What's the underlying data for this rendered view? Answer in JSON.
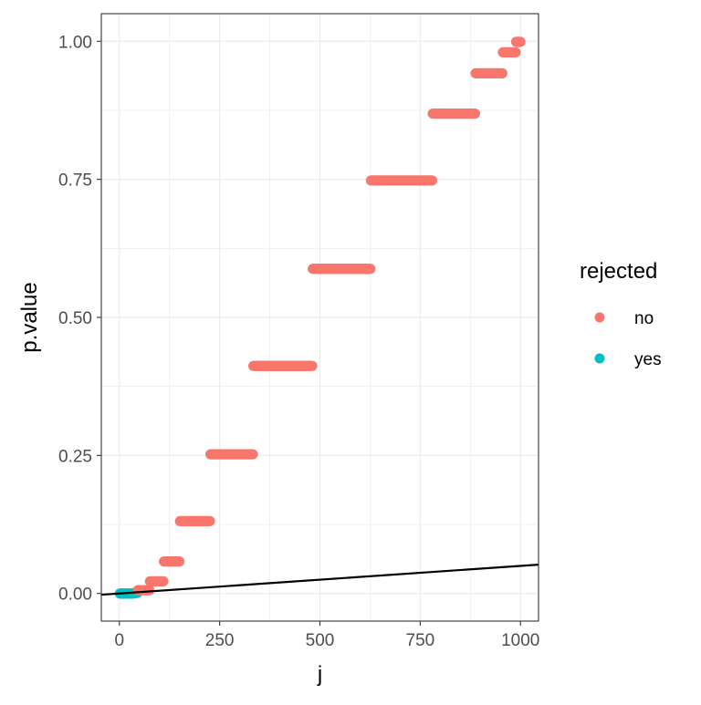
{
  "chart_data": {
    "type": "scatter",
    "xlabel": "j",
    "ylabel": "p.value",
    "xlim": [
      -45,
      1045
    ],
    "ylim": [
      -0.05,
      1.05
    ],
    "x_ticks": [
      {
        "value": 0,
        "label": "0"
      },
      {
        "value": 250,
        "label": "250"
      },
      {
        "value": 500,
        "label": "500"
      },
      {
        "value": 750,
        "label": "750"
      },
      {
        "value": 1000,
        "label": "1000"
      }
    ],
    "y_ticks": [
      {
        "value": 0,
        "label": "0.00"
      },
      {
        "value": 0.25,
        "label": "0.25"
      },
      {
        "value": 0.5,
        "label": "0.50"
      },
      {
        "value": 0.75,
        "label": "0.75"
      },
      {
        "value": 1,
        "label": "1.00"
      }
    ],
    "grid": true,
    "theme": "bw",
    "legend": {
      "title": "rejected",
      "position": "right",
      "entries": [
        {
          "label": "no",
          "color": "#F8766D"
        },
        {
          "label": "yes",
          "color": "#00BFC4"
        }
      ]
    },
    "series": [
      {
        "name": "yes",
        "color": "#00BFC4",
        "segments": [
          {
            "x_start": 1,
            "x_end": 36,
            "y": 0.0
          },
          {
            "x_start": 37,
            "x_end": 45,
            "y": 0.001
          }
        ]
      },
      {
        "name": "no",
        "color": "#F8766D",
        "segments": [
          {
            "x_start": 46,
            "x_end": 75,
            "y": 0.006
          },
          {
            "x_start": 76,
            "x_end": 110,
            "y": 0.022
          },
          {
            "x_start": 111,
            "x_end": 150,
            "y": 0.058
          },
          {
            "x_start": 151,
            "x_end": 226,
            "y": 0.131
          },
          {
            "x_start": 227,
            "x_end": 333,
            "y": 0.252
          },
          {
            "x_start": 334,
            "x_end": 481,
            "y": 0.412
          },
          {
            "x_start": 482,
            "x_end": 626,
            "y": 0.588
          },
          {
            "x_start": 627,
            "x_end": 780,
            "y": 0.748
          },
          {
            "x_start": 781,
            "x_end": 887,
            "y": 0.869
          },
          {
            "x_start": 888,
            "x_end": 955,
            "y": 0.942
          },
          {
            "x_start": 956,
            "x_end": 988,
            "y": 0.98
          },
          {
            "x_start": 989,
            "x_end": 1000,
            "y": 0.999
          }
        ]
      }
    ],
    "reference_line": {
      "description": "BH threshold line",
      "intercept": 0,
      "slope": 5e-05,
      "color": "#000000"
    }
  }
}
